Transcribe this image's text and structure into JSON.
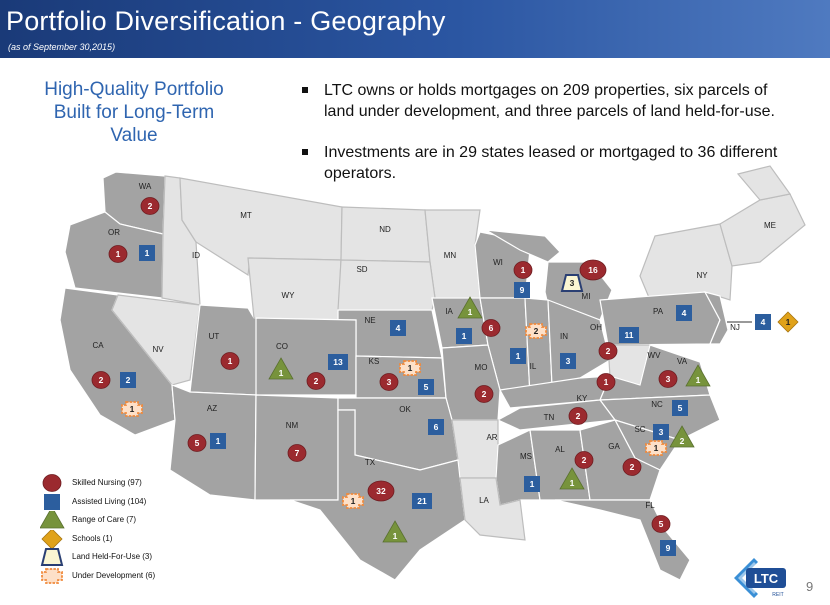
{
  "header": {
    "title": "Portfolio Diversification - Geography",
    "subtitle": "(as of September 30,2015)"
  },
  "tagline": "High-Quality Portfolio Built for Long-Term Value",
  "bullets": [
    "LTC owns or holds mortgages on 209 properties, six parcels of land under development, and three parcels of land held-for-use.",
    "Investments are in 29 states leased or mortgaged to 36 different operators."
  ],
  "colors": {
    "skilled_nursing": "#9b2a2f",
    "assisted_living": "#2c5e9e",
    "range_of_care": "#77933c",
    "schools": "#e0a21a",
    "land_held": "#2a3f73",
    "under_development": "#f08a3c",
    "state_portfolio": "#a3a3a3",
    "state_none": "#e4e4e4"
  },
  "state_labels": {
    "WA": "WA",
    "OR": "OR",
    "ID": "ID",
    "MT": "MT",
    "ND": "ND",
    "MN": "MN",
    "WI": "WI",
    "MI": "MI",
    "NY": "NY",
    "ME": "ME",
    "CA": "CA",
    "NV": "NV",
    "UT": "UT",
    "WY": "WY",
    "SD": "SD",
    "NE": "NE",
    "IA": "IA",
    "IL": "IL",
    "IN": "IN",
    "OH": "OH",
    "PA": "PA",
    "NJ": "NJ",
    "CO": "CO",
    "KS": "KS",
    "MO": "MO",
    "KY": "KY",
    "WV": "WV",
    "VA": "VA",
    "NC": "NC",
    "SC": "SC",
    "TN": "TN",
    "AZ": "AZ",
    "NM": "NM",
    "OK": "OK",
    "AR": "AR",
    "MS": "MS",
    "AL": "AL",
    "GA": "GA",
    "TX": "TX",
    "LA": "LA",
    "FL": "FL"
  },
  "markers": {
    "WA": {
      "skilled_nursing": "2"
    },
    "OR": {
      "skilled_nursing": "1",
      "assisted_living": "1"
    },
    "CA": {
      "skilled_nursing": "2",
      "assisted_living": "2",
      "under_development": "1"
    },
    "UT": {
      "skilled_nursing": "1"
    },
    "AZ": {
      "skilled_nursing": "5",
      "assisted_living": "1"
    },
    "CO": {
      "range_of_care": "1",
      "skilled_nursing": "2",
      "assisted_living": "13"
    },
    "NM": {
      "skilled_nursing": "7"
    },
    "NE": {
      "assisted_living": "4"
    },
    "KS": {
      "skilled_nursing": "3",
      "under_development": "1",
      "assisted_living": "5"
    },
    "OK": {
      "assisted_living": "6"
    },
    "TX": {
      "skilled_nursing": "32",
      "assisted_living": "21",
      "under_development": "1",
      "range_of_care": "1"
    },
    "IA": {
      "range_of_care": "1",
      "skilled_nursing": "6",
      "assisted_living": "1"
    },
    "WI": {
      "skilled_nursing": "1",
      "assisted_living": "9"
    },
    "MI": {
      "skilled_nursing": "16",
      "land_held": "3"
    },
    "IL": {
      "under_development": "2",
      "assisted_living": "1"
    },
    "MO": {
      "skilled_nursing": "2"
    },
    "IN": {
      "assisted_living": "3"
    },
    "OH": {
      "assisted_living": "11",
      "skilled_nursing": "2"
    },
    "PA": {
      "assisted_living": "4"
    },
    "NJ": {
      "assisted_living": "4",
      "schools": "1"
    },
    "KY": {
      "skilled_nursing": "1"
    },
    "VA": {
      "skilled_nursing": "3",
      "range_of_care": "1"
    },
    "NC": {
      "assisted_living": "5"
    },
    "SC": {
      "assisted_living": "3",
      "range_of_care": "2",
      "under_development": "1"
    },
    "TN": {
      "skilled_nursing": "2"
    },
    "MS": {
      "assisted_living": "1"
    },
    "AL": {
      "skilled_nursing": "2",
      "range_of_care": "1"
    },
    "GA": {
      "skilled_nursing": "2"
    },
    "FL": {
      "skilled_nursing": "5",
      "assisted_living": "9"
    }
  },
  "legend": [
    {
      "key": "skilled_nursing",
      "label": "Skilled Nursing (97)"
    },
    {
      "key": "assisted_living",
      "label": "Assisted Living (104)"
    },
    {
      "key": "range_of_care",
      "label": "Range of Care (7)"
    },
    {
      "key": "schools",
      "label": "Schools (1)"
    },
    {
      "key": "land_held",
      "label": "Land Held-For-Use  (3)"
    },
    {
      "key": "under_development",
      "label": "Under Development (6)"
    }
  ],
  "logo": {
    "text": "LTC",
    "sub": "REIT"
  },
  "page_number": "9"
}
